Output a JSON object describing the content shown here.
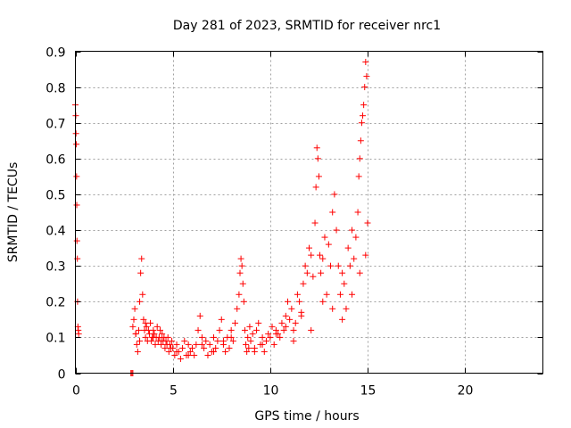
{
  "chart_data": {
    "type": "scatter",
    "title": "Day 281 of 2023, SRMTID for receiver nrc1",
    "xlabel": "GPS time / hours",
    "ylabel": "SRMTID / TECUs",
    "xlim": [
      0,
      24
    ],
    "ylim": [
      0,
      0.9
    ],
    "xticks": [
      "0",
      "5",
      "10",
      "15",
      "20"
    ],
    "yticks": [
      "0",
      "0.1",
      "0.2",
      "0.3",
      "0.4",
      "0.5",
      "0.6",
      "0.7",
      "0.8",
      "0.9"
    ],
    "grid": true,
    "marker": "+",
    "color": "#ff0000",
    "series": [
      {
        "name": "nrc1",
        "x": [
          0.0,
          0.02,
          0.03,
          0.05,
          0.06,
          0.07,
          0.08,
          0.1,
          0.11,
          0.13,
          0.15,
          0.17,
          2.85,
          2.9,
          2.95,
          2.95,
          3.0,
          3.05,
          3.1,
          3.15,
          3.2,
          3.25,
          3.3,
          3.35,
          3.4,
          3.45,
          3.5,
          3.55,
          3.6,
          3.65,
          3.7,
          3.75,
          3.8,
          3.85,
          3.9,
          3.95,
          4.0,
          4.05,
          4.1,
          4.15,
          4.2,
          4.25,
          4.3,
          4.35,
          4.4,
          4.45,
          4.5,
          4.55,
          4.6,
          4.65,
          4.7,
          4.75,
          4.8,
          4.85,
          4.9,
          4.95,
          5.0,
          5.1,
          5.2,
          5.3,
          5.4,
          5.5,
          5.6,
          5.7,
          5.8,
          5.9,
          6.0,
          6.1,
          6.2,
          6.3,
          6.4,
          6.5,
          6.6,
          6.7,
          6.8,
          6.9,
          7.0,
          7.1,
          7.2,
          7.3,
          7.4,
          7.5,
          7.6,
          7.7,
          7.8,
          7.9,
          8.0,
          8.1,
          8.2,
          8.3,
          8.4,
          8.45,
          8.5,
          8.55,
          8.6,
          8.65,
          8.7,
          8.75,
          8.8,
          8.85,
          8.9,
          8.95,
          9.0,
          9.1,
          9.2,
          9.3,
          9.4,
          9.5,
          9.6,
          9.7,
          9.8,
          9.9,
          10.0,
          10.1,
          10.2,
          10.3,
          10.4,
          10.5,
          10.6,
          10.7,
          10.8,
          10.9,
          11.0,
          11.1,
          11.2,
          11.3,
          11.4,
          11.5,
          11.6,
          11.7,
          11.8,
          11.9,
          12.0,
          12.1,
          12.2,
          12.3,
          12.35,
          12.4,
          12.45,
          12.5,
          12.55,
          12.6,
          12.7,
          12.8,
          12.9,
          13.0,
          13.1,
          13.2,
          13.3,
          13.4,
          13.5,
          13.6,
          13.7,
          13.8,
          13.9,
          14.0,
          14.1,
          14.2,
          14.3,
          14.4,
          14.5,
          14.55,
          14.6,
          14.65,
          14.7,
          14.75,
          14.8,
          14.85,
          14.9,
          14.95,
          15.0,
          3.1,
          3.3,
          3.6,
          4.0,
          4.4,
          5.2,
          5.8,
          6.5,
          7.1,
          7.6,
          8.0,
          9.2,
          9.6,
          10.3,
          10.8,
          11.2,
          11.6,
          12.1,
          12.7,
          13.2,
          13.7,
          14.2,
          14.6,
          14.9
        ],
        "y": [
          0.75,
          0.72,
          0.67,
          0.64,
          0.55,
          0.47,
          0.37,
          0.32,
          0.2,
          0.13,
          0.12,
          0.11,
          0.0,
          0.0,
          0.0,
          0.13,
          0.15,
          0.18,
          0.11,
          0.08,
          0.06,
          0.12,
          0.2,
          0.28,
          0.32,
          0.22,
          0.15,
          0.12,
          0.1,
          0.13,
          0.09,
          0.12,
          0.11,
          0.14,
          0.09,
          0.1,
          0.12,
          0.11,
          0.08,
          0.1,
          0.13,
          0.09,
          0.1,
          0.12,
          0.08,
          0.11,
          0.09,
          0.1,
          0.07,
          0.09,
          0.08,
          0.1,
          0.06,
          0.08,
          0.07,
          0.09,
          0.07,
          0.05,
          0.08,
          0.06,
          0.04,
          0.07,
          0.09,
          0.05,
          0.08,
          0.06,
          0.07,
          0.05,
          0.08,
          0.12,
          0.16,
          0.1,
          0.07,
          0.09,
          0.05,
          0.08,
          0.06,
          0.1,
          0.07,
          0.09,
          0.12,
          0.15,
          0.08,
          0.06,
          0.1,
          0.07,
          0.12,
          0.09,
          0.14,
          0.18,
          0.22,
          0.28,
          0.32,
          0.3,
          0.25,
          0.2,
          0.12,
          0.08,
          0.06,
          0.1,
          0.07,
          0.13,
          0.09,
          0.11,
          0.07,
          0.12,
          0.14,
          0.08,
          0.1,
          0.06,
          0.09,
          0.11,
          0.1,
          0.13,
          0.08,
          0.12,
          0.11,
          0.1,
          0.14,
          0.12,
          0.16,
          0.2,
          0.15,
          0.18,
          0.12,
          0.14,
          0.22,
          0.2,
          0.17,
          0.25,
          0.3,
          0.28,
          0.35,
          0.33,
          0.27,
          0.42,
          0.52,
          0.63,
          0.6,
          0.55,
          0.33,
          0.28,
          0.32,
          0.38,
          0.22,
          0.36,
          0.3,
          0.45,
          0.5,
          0.4,
          0.3,
          0.22,
          0.28,
          0.25,
          0.18,
          0.35,
          0.3,
          0.4,
          0.32,
          0.38,
          0.45,
          0.55,
          0.6,
          0.65,
          0.7,
          0.72,
          0.75,
          0.8,
          0.87,
          0.83,
          0.42,
          0.11,
          0.09,
          0.14,
          0.1,
          0.09,
          0.06,
          0.05,
          0.08,
          0.06,
          0.09,
          0.1,
          0.06,
          0.08,
          0.11,
          0.13,
          0.09,
          0.16,
          0.12,
          0.2,
          0.18,
          0.15,
          0.22,
          0.28,
          0.33
        ]
      }
    ]
  }
}
